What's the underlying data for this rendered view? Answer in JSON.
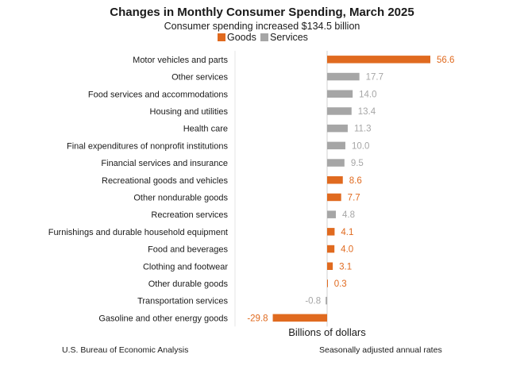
{
  "chart_data": {
    "type": "bar",
    "orientation": "horizontal",
    "title": "Changes in Monthly Consumer Spending, March 2025",
    "subtitle": "Consumer spending increased $134.5 billion",
    "xlabel": "Billions of dollars",
    "ylabel": "",
    "xlim": [
      -30,
      60
    ],
    "grid": false,
    "legend_position": "top-center",
    "colors": {
      "Goods": "#e06a1f",
      "Services": "#a6a6a6"
    },
    "legend": [
      {
        "name": "Goods",
        "color": "#e06a1f"
      },
      {
        "name": "Services",
        "color": "#a6a6a6"
      }
    ],
    "categories": [
      "Motor vehicles and parts",
      "Other services",
      "Food services and accommodations",
      "Housing and utilities",
      "Health care",
      "Final expenditures of nonprofit institutions",
      "Financial services and insurance",
      "Recreational goods and vehicles",
      "Other nondurable goods",
      "Recreation services",
      "Furnishings and durable household equipment",
      "Food and beverages",
      "Clothing and footwear",
      "Other durable goods",
      "Transportation services",
      "Gasoline and other energy goods"
    ],
    "values": [
      56.6,
      17.7,
      14.0,
      13.4,
      11.3,
      10.0,
      9.5,
      8.6,
      7.7,
      4.8,
      4.1,
      4.0,
      3.1,
      0.3,
      -0.8,
      -29.8
    ],
    "value_labels": [
      "56.6",
      "17.7",
      "14.0",
      "13.4",
      "11.3",
      "10.0",
      "9.5",
      "8.6",
      "7.7",
      "4.8",
      "4.1",
      "4.0",
      "3.1",
      "0.3",
      "-0.8",
      "-29.8"
    ],
    "groups": [
      "Goods",
      "Services",
      "Services",
      "Services",
      "Services",
      "Services",
      "Services",
      "Goods",
      "Goods",
      "Services",
      "Goods",
      "Goods",
      "Goods",
      "Goods",
      "Services",
      "Goods"
    ]
  },
  "footer": {
    "source": "U.S. Bureau of Economic Analysis",
    "note": "Seasonally adjusted annual rates"
  }
}
